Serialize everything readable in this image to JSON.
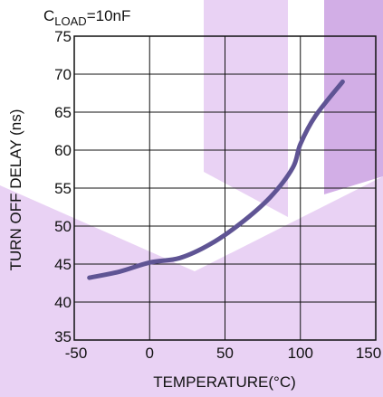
{
  "condition_label": {
    "prefix": "C",
    "subscript": "LOAD",
    "suffix": "=10nF"
  },
  "colors": {
    "curve": "#5f5494",
    "grid": "#111111",
    "watermark_light": "#e9d2f4",
    "watermark_dark": "#d2aee6"
  },
  "chart_data": {
    "type": "line",
    "xlabel": "TEMPERATURE(°C)",
    "ylabel": "TURN OFF DELAY (ns)",
    "xlim": [
      -50,
      150
    ],
    "ylim": [
      35,
      75
    ],
    "x_ticks": [
      -50,
      0,
      50,
      100,
      150
    ],
    "y_ticks": [
      35,
      40,
      45,
      50,
      55,
      60,
      65,
      70,
      75
    ],
    "x_tick_labels": [
      "-50",
      "0",
      "50",
      "100",
      "150"
    ],
    "y_tick_labels": [
      "35",
      "40",
      "45",
      "50",
      "55",
      "60",
      "65",
      "70",
      "75"
    ],
    "grid": true,
    "series": [
      {
        "x": [
          -40,
          -20,
          0,
          20,
          40,
          60,
          80,
          95,
          100,
          110,
          128
        ],
        "y": [
          43.2,
          44,
          45.2,
          45.8,
          47.6,
          50.3,
          53.8,
          57.7,
          60.8,
          64.5,
          69
        ]
      }
    ]
  }
}
